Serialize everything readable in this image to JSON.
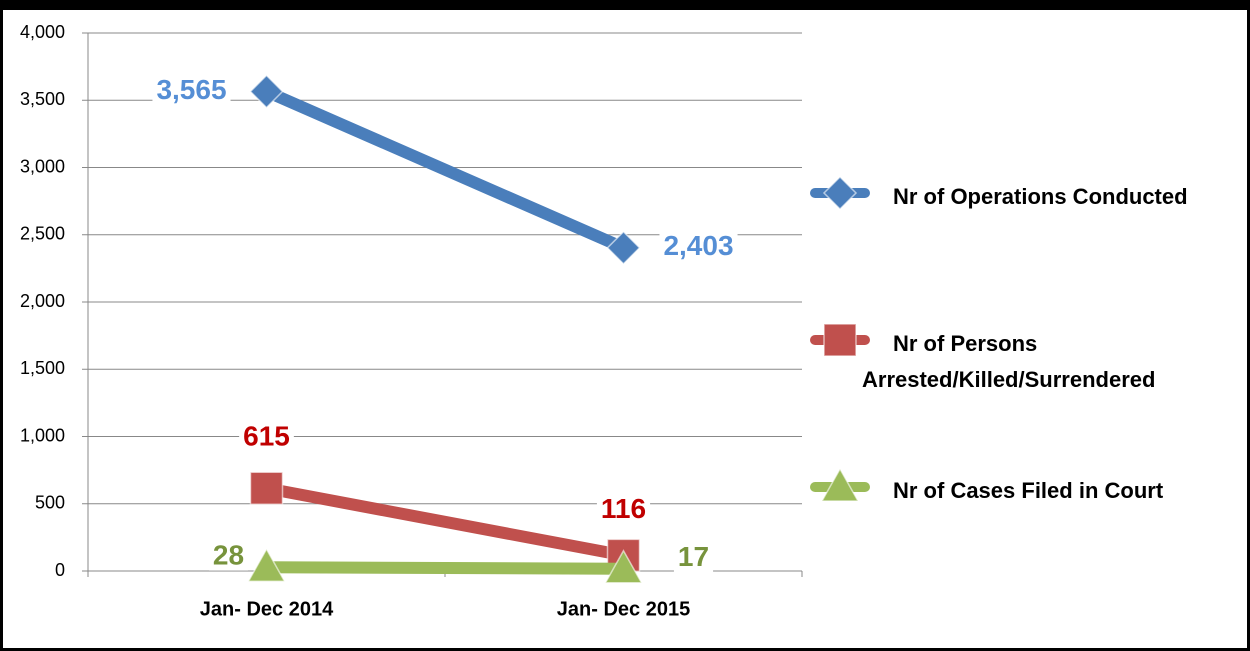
{
  "chart_data": {
    "type": "line",
    "categories": [
      "Jan- Dec 2014",
      "Jan- Dec 2015"
    ],
    "series": [
      {
        "name": "Nr of Operations Conducted",
        "color": "#4a7ebb",
        "label_color": "#558ed5",
        "marker": "diamond",
        "values": [
          3565,
          2403
        ],
        "value_labels": [
          "3,565",
          "2,403"
        ]
      },
      {
        "name": "Nr of Persons Arrested/Killed/Surrendered",
        "color": "#c0504d",
        "label_color": "#c00000",
        "marker": "square",
        "values": [
          615,
          116
        ]
      },
      {
        "name": "Nr of Cases Filed in Court",
        "color": "#9bbb59",
        "label_color": "#77933c",
        "marker": "triangle",
        "values": [
          28,
          17
        ]
      }
    ],
    "ylim": [
      0,
      4000
    ],
    "yticks": [
      0,
      500,
      {
        "value": 1000,
        "label": "1,000"
      },
      {
        "value": 1500,
        "label": "1,500"
      },
      {
        "value": 2000,
        "label": "2,000"
      },
      {
        "value": 2500,
        "label": "2,500"
      },
      {
        "value": 3000,
        "label": "3,000"
      },
      {
        "value": 3500,
        "label": "3,500"
      },
      {
        "value": 4000,
        "label": "4,000"
      }
    ],
    "grid": true,
    "legend": "right"
  }
}
